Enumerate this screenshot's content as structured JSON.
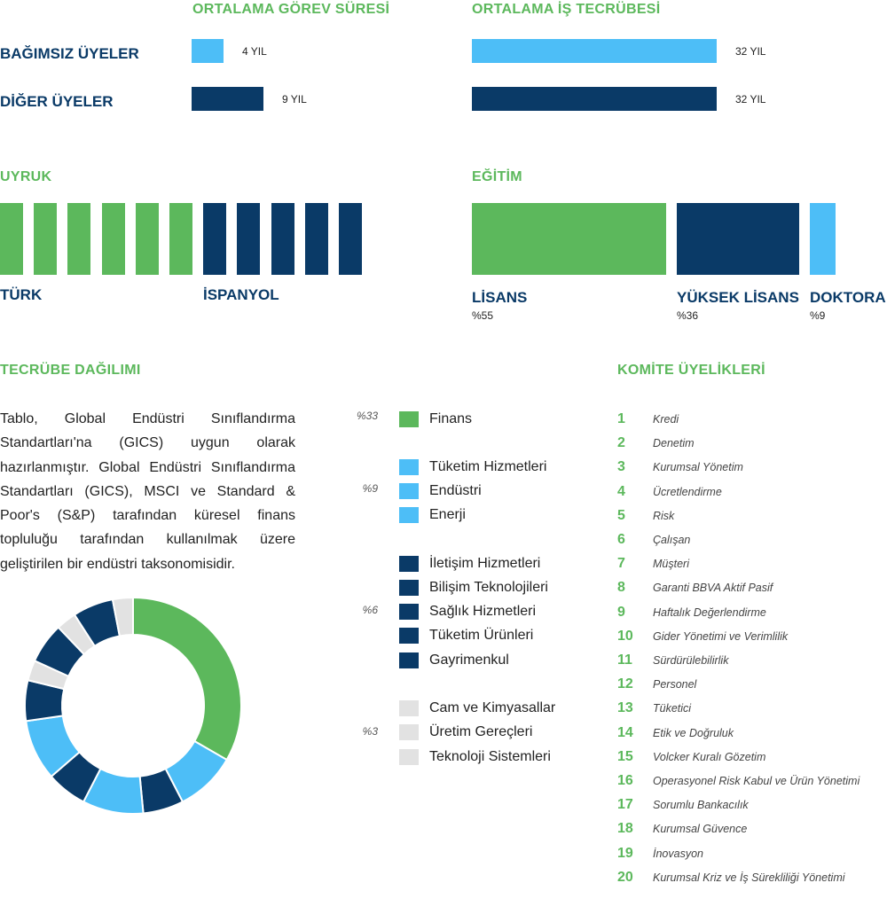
{
  "colors": {
    "green": "#5cb85c",
    "navy": "#0a3a67",
    "light_blue": "#4dbef7",
    "light_gray": "#e2e2e2"
  },
  "tenure": {
    "title": "ORTALAMA GÖREV SÜRESİ",
    "rows": [
      {
        "label": "BAĞIMSIZ ÜYELER",
        "value_label": "4 YIL",
        "value": 4,
        "color": "light_blue"
      },
      {
        "label": "DİĞER ÜYELER",
        "value_label": "9 YIL",
        "value": 9,
        "color": "navy"
      }
    ]
  },
  "experience": {
    "title": "ORTALAMA İŞ TECRÜBESİ",
    "rows": [
      {
        "value_label": "32 YIL",
        "value": 32,
        "color": "light_blue"
      },
      {
        "value_label": "32 YIL",
        "value": 32,
        "color": "navy"
      }
    ]
  },
  "nationality": {
    "title": "UYRUK",
    "groups": [
      {
        "label": "TÜRK",
        "count": 6,
        "color": "green"
      },
      {
        "label": "İSPANYOL",
        "count": 5,
        "color": "navy"
      }
    ]
  },
  "education": {
    "title": "EĞİTİM",
    "items": [
      {
        "label": "LİSANS",
        "pct_label": "%55",
        "value": 55,
        "color": "green"
      },
      {
        "label": "YÜKSEK LİSANS",
        "pct_label": "%36",
        "value": 36,
        "color": "navy"
      },
      {
        "label": "DOKTORA",
        "pct_label": "%9",
        "value": 9,
        "color": "light_blue"
      }
    ]
  },
  "experience_dist": {
    "title": "TECRÜBE DAĞILIMI",
    "description": "Tablo, Global Endüstri Sınıflandırma Standartları'na (GICS) uygun olarak hazırlanmıştır. Global Endüstri Sınıflandırma Standartları (GICS), MSCI ve Standard & Poor's (S&P) tarafından küresel finans topluluğu tarafından kullanılmak üzere geliştirilen bir endüstri taksonomisidir.",
    "legend": [
      {
        "label": "Finans",
        "color": "green"
      },
      {
        "label": "Tüketim Hizmetleri",
        "color": "light_blue"
      },
      {
        "label": "Endüstri",
        "color": "light_blue"
      },
      {
        "label": "Enerji",
        "color": "light_blue"
      },
      {
        "label": "İletişim Hizmetleri",
        "color": "navy"
      },
      {
        "label": "Bilişim Teknolojileri",
        "color": "navy"
      },
      {
        "label": "Sağlık Hizmetleri",
        "color": "navy"
      },
      {
        "label": "Tüketim Ürünleri",
        "color": "navy"
      },
      {
        "label": "Gayrimenkul",
        "color": "navy"
      },
      {
        "label": "Cam ve Kimyasallar",
        "color": "light_gray"
      },
      {
        "label": "Üretim Gereçleri",
        "color": "light_gray"
      },
      {
        "label": "Teknoloji Sistemleri",
        "color": "light_gray"
      }
    ],
    "pct_labels": [
      "%33",
      "%9",
      "%6",
      "%3"
    ]
  },
  "chart_data": {
    "type": "pie",
    "labels": [
      "Finans",
      "Tüketim Hizmetleri",
      "Endüstri",
      "Enerji",
      "İletişim Hizmetleri",
      "Bilişim Teknolojileri",
      "Sağlık Hizmetleri",
      "Tüketim Ürünleri",
      "Gayrimenkul",
      "Cam ve Kimyasallar",
      "Üretim Gereçleri",
      "Teknoloji Sistemleri"
    ],
    "values": [
      33,
      9,
      9,
      9,
      6,
      6,
      6,
      6,
      6,
      3,
      3,
      3
    ],
    "slice_order": [
      "Finans",
      "Tüketim Hizmetleri",
      "Tüketim Ürünleri",
      "Endüstri",
      "Sağlık Hizmetleri",
      "Enerji",
      "Bilişim Teknolojileri",
      "Cam ve Kimyasallar",
      "Gayrimenkul",
      "Üretim Gereçleri",
      "İletişim Hizmetleri",
      "Teknoloji Sistemleri"
    ],
    "donut": true
  },
  "committees": {
    "title": "KOMİTE ÜYELİKLERİ",
    "items": [
      {
        "num": "1",
        "label": "Kredi"
      },
      {
        "num": "2",
        "label": "Denetim"
      },
      {
        "num": "3",
        "label": "Kurumsal Yönetim"
      },
      {
        "num": "4",
        "label": "Ücretlendirme"
      },
      {
        "num": "5",
        "label": "Risk"
      },
      {
        "num": "6",
        "label": "Çalışan"
      },
      {
        "num": "7",
        "label": "Müşteri"
      },
      {
        "num": "8",
        "label": "Garanti BBVA Aktif Pasif"
      },
      {
        "num": "9",
        "label": "Haftalık Değerlendirme"
      },
      {
        "num": "10",
        "label": "Gider Yönetimi ve Verimlilik"
      },
      {
        "num": "11",
        "label": "Sürdürülebilirlik"
      },
      {
        "num": "12",
        "label": "Personel"
      },
      {
        "num": "13",
        "label": "Tüketici"
      },
      {
        "num": "14",
        "label": "Etik ve Doğruluk"
      },
      {
        "num": "15",
        "label": "Volcker Kuralı Gözetim"
      },
      {
        "num": "16",
        "label": "Operasyonel Risk Kabul ve Ürün Yönetimi"
      },
      {
        "num": "17",
        "label": "Sorumlu Bankacılık"
      },
      {
        "num": "18",
        "label": "Kurumsal Güvence"
      },
      {
        "num": "19",
        "label": "İnovasyon"
      },
      {
        "num": "20",
        "label": "Kurumsal Kriz ve İş Sürekliliği Yönetimi"
      }
    ]
  }
}
